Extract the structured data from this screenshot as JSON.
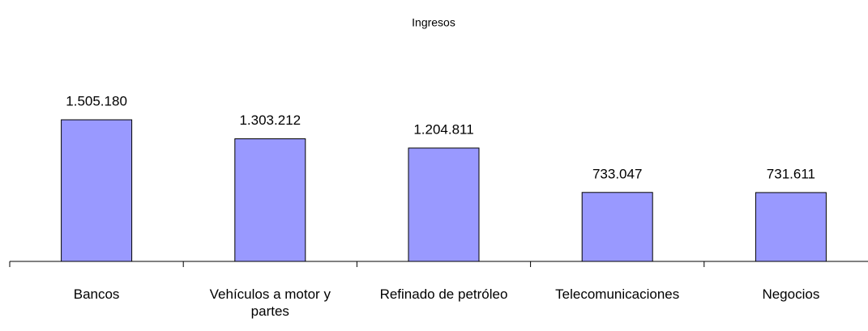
{
  "chart_data": {
    "type": "bar",
    "title": "Ingresos",
    "categories": [
      "Bancos",
      "Vehículos a motor y partes",
      "Refinado de petróleo",
      "Telecomunicaciones",
      "Negocios"
    ],
    "values": [
      1505180,
      1303212,
      1204811,
      733047,
      731611
    ],
    "value_labels": [
      "1.505.180",
      "1.303.212",
      "1.204.811",
      "733.047",
      "731.611"
    ],
    "color": "#9999ff",
    "ylim": [
      0,
      1600000
    ]
  }
}
